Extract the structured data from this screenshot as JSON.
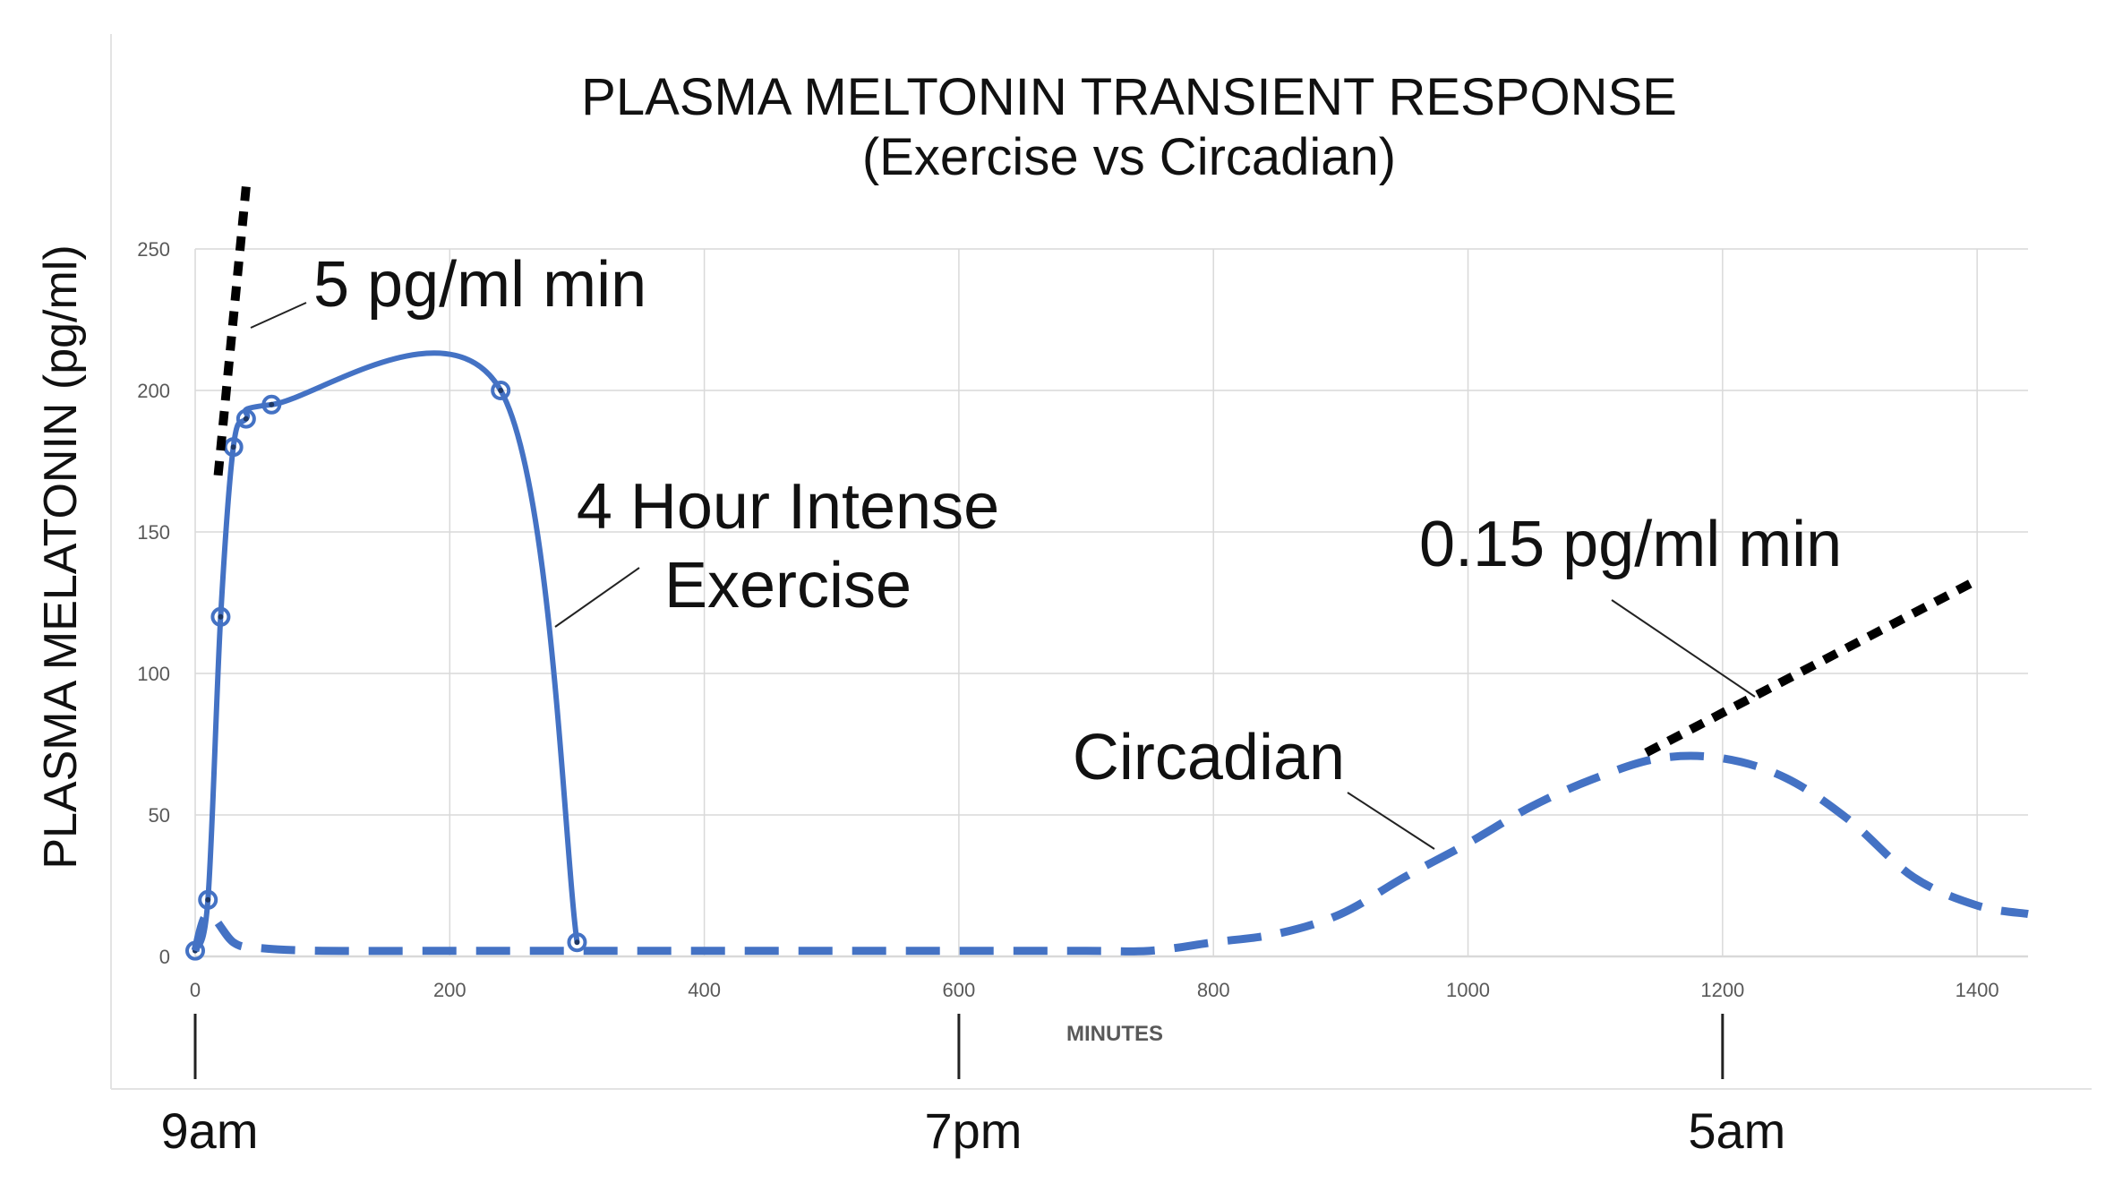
{
  "chart_data": {
    "type": "line",
    "title": "PLASMA MELTONIN TRANSIENT RESPONSE",
    "subtitle": "(Exercise vs Circadian)",
    "xlabel": "MINUTES",
    "ylabel": "PLASMA MELATONIN (pg/ml)",
    "xlim": [
      0,
      1440
    ],
    "ylim": [
      0,
      250
    ],
    "x_ticks": [
      0,
      200,
      400,
      600,
      800,
      1000,
      1200,
      1400
    ],
    "y_ticks": [
      0,
      50,
      100,
      150,
      200,
      250
    ],
    "grid": true,
    "colors": {
      "series": "#4472c4",
      "slope": "#000000",
      "axis": "#d9d9d9",
      "grid": "#d9d9d9"
    },
    "series": [
      {
        "name": "4 Hour Intense Exercise",
        "style": "solid",
        "markers": true,
        "x": [
          0,
          10,
          20,
          30,
          40,
          60,
          240,
          300
        ],
        "y": [
          2,
          20,
          120,
          180,
          190,
          195,
          200,
          5
        ]
      },
      {
        "name": "Circadian",
        "style": "dashed",
        "markers": false,
        "x": [
          0,
          10,
          30,
          50,
          100,
          200,
          300,
          400,
          500,
          600,
          700,
          750,
          800,
          850,
          900,
          950,
          1000,
          1050,
          1100,
          1150,
          1200,
          1250,
          1300,
          1350,
          1400,
          1440
        ],
        "y": [
          2,
          15,
          5,
          3,
          2,
          2,
          2,
          2,
          2,
          2,
          2,
          2,
          5,
          8,
          15,
          28,
          40,
          53,
          63,
          70,
          70,
          63,
          48,
          28,
          18,
          15
        ]
      }
    ],
    "slope_lines": [
      {
        "label": "5 pg/ml min",
        "x": [
          18,
          40
        ],
        "y": [
          170,
          272
        ]
      },
      {
        "label": "0.15 pg/ml min",
        "x": [
          1140,
          1400
        ],
        "y": [
          72,
          133
        ]
      }
    ],
    "annotations": [
      {
        "text": "5 pg/ml min"
      },
      {
        "text": "4 Hour Intense",
        "text2": "Exercise"
      },
      {
        "text": "0.15 pg/ml min"
      },
      {
        "text": "Circadian"
      }
    ],
    "time_markers": [
      {
        "x": 0,
        "label": "9am"
      },
      {
        "x": 600,
        "label": "7pm"
      },
      {
        "x": 1200,
        "label": "5am"
      }
    ]
  }
}
